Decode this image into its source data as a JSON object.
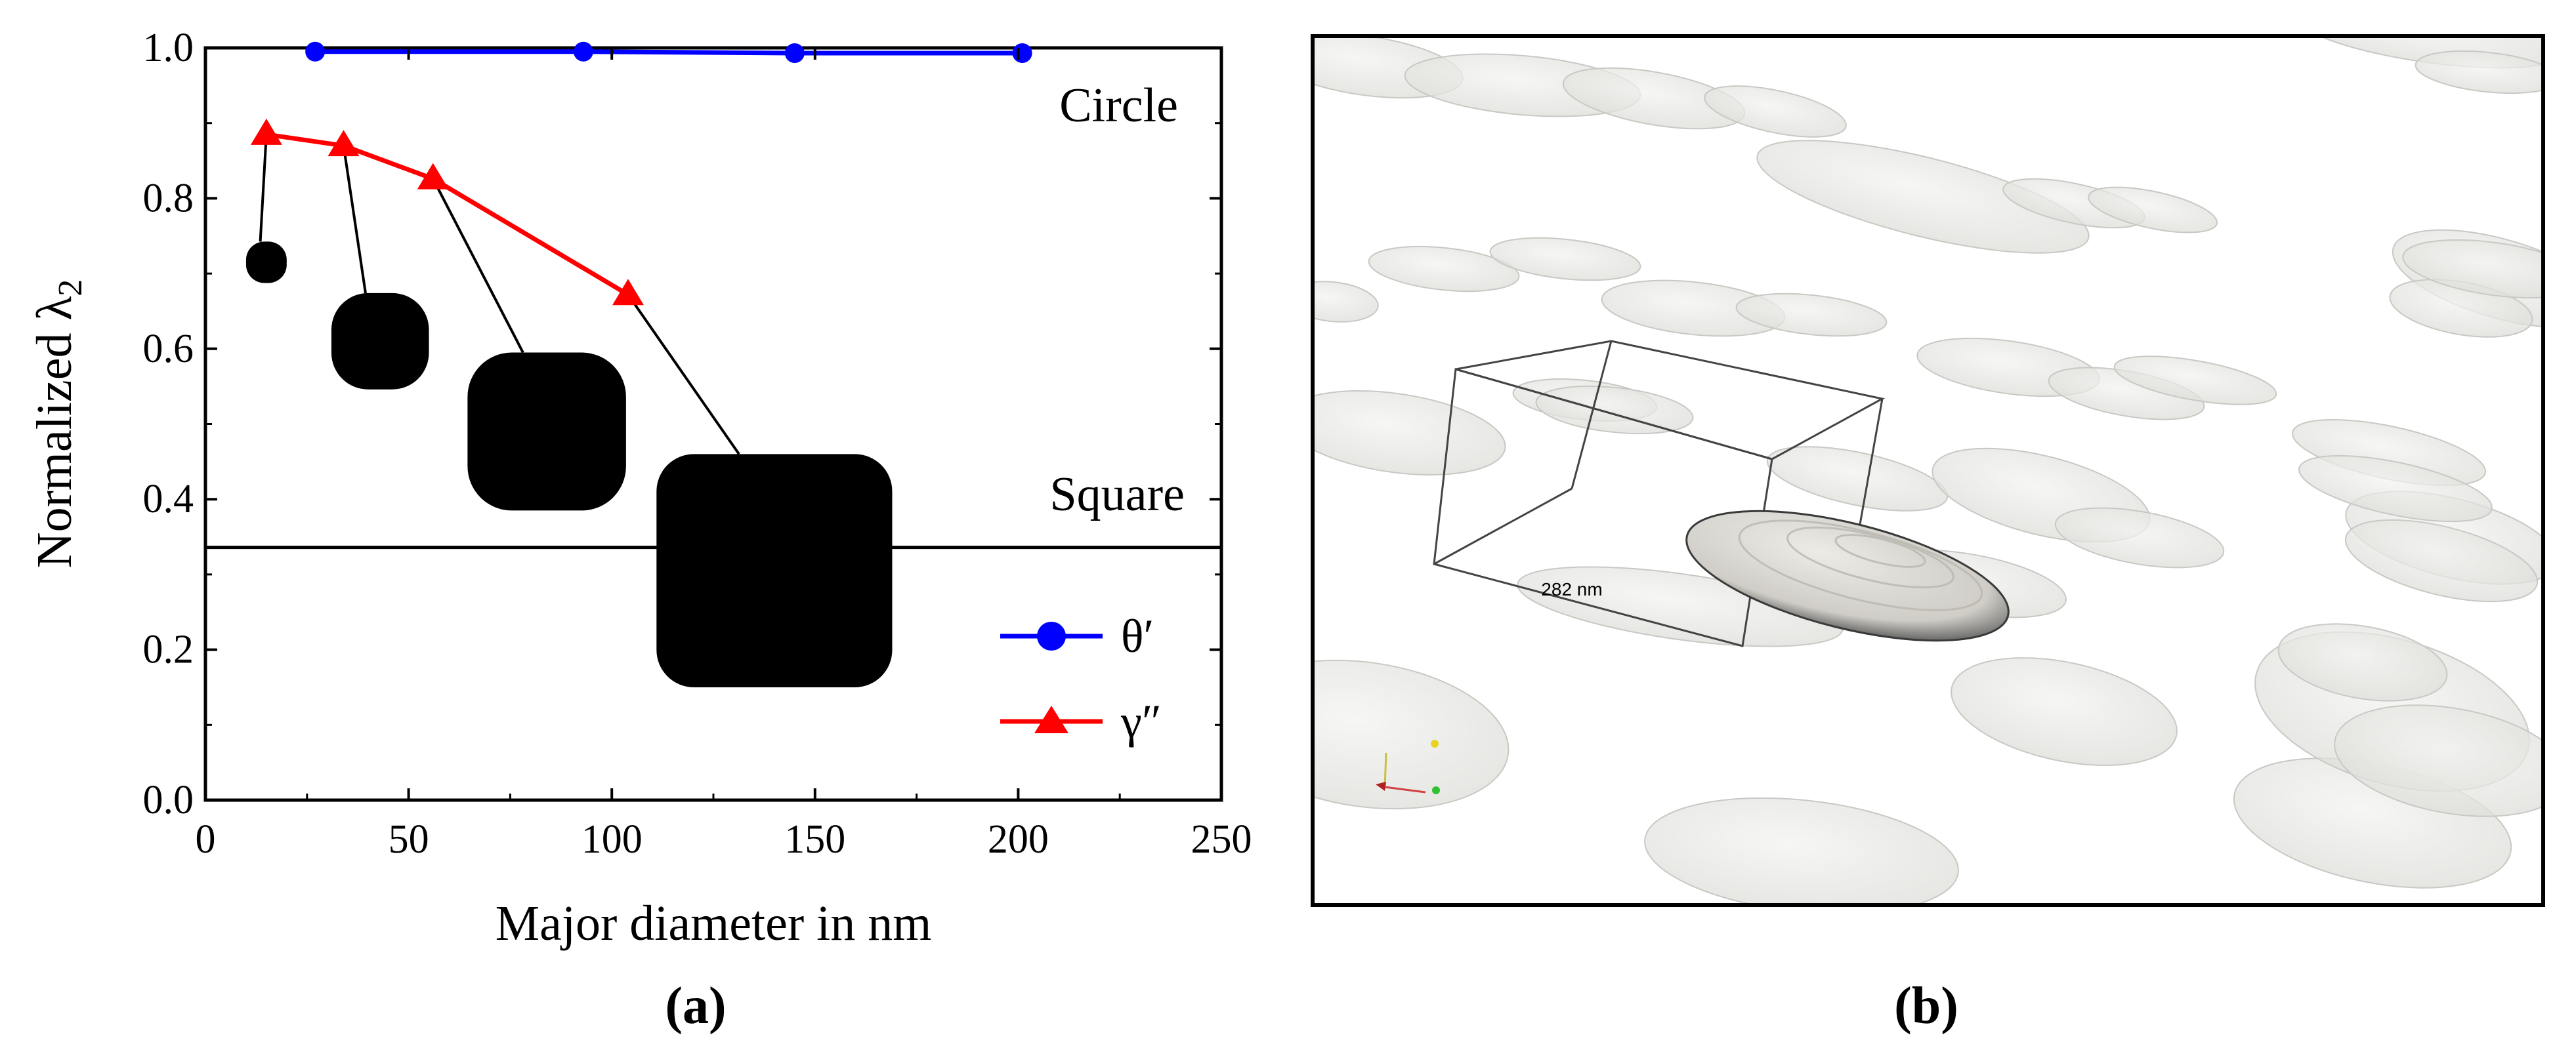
{
  "chart_data": [
    {
      "type": "line",
      "xlabel": "Major diameter in nm",
      "ylabel_main": "Normalized λ",
      "ylabel_sub": "2",
      "xlim": [
        0,
        250
      ],
      "ylim": [
        0,
        1.0
      ],
      "xticks": [
        0,
        50,
        100,
        150,
        200,
        250
      ],
      "yticks": [
        0.0,
        0.2,
        0.4,
        0.6,
        0.8,
        1.0
      ],
      "xtick_labels": [
        "0",
        "50",
        "100",
        "150",
        "200",
        "250"
      ],
      "ytick_labels": [
        "0.0",
        "0.2",
        "0.4",
        "0.6",
        "0.8",
        "1.0"
      ],
      "grid": false,
      "legend_position": "bottom-right",
      "series": [
        {
          "name": "θ′",
          "marker": "circle",
          "color": "#0000ff",
          "x": [
            27,
            93,
            145,
            201
          ],
          "y": [
            0.995,
            0.995,
            0.993,
            0.993
          ]
        },
        {
          "name": "γ″",
          "marker": "triangle",
          "color": "#ff0000",
          "x": [
            15,
            34,
            56,
            104
          ],
          "y": [
            0.885,
            0.87,
            0.826,
            0.672
          ]
        }
      ],
      "reference_lines": [
        {
          "label": "Circle",
          "y": 1.0
        },
        {
          "label": "Square",
          "y": 0.336
        }
      ],
      "shape_insets": [
        {
          "for_x": 15,
          "for_y": 0.885,
          "center": [
            15,
            0.715
          ],
          "size": [
            10,
            0.055
          ],
          "roundness": 0.45
        },
        {
          "for_x": 34,
          "for_y": 0.87,
          "center": [
            43,
            0.61
          ],
          "size": [
            24,
            0.128
          ],
          "roundness": 0.38
        },
        {
          "for_x": 56,
          "for_y": 0.826,
          "center": [
            84,
            0.49
          ],
          "size": [
            39,
            0.21
          ],
          "roundness": 0.28
        },
        {
          "for_x": 104,
          "for_y": 0.672,
          "center": [
            140,
            0.305
          ],
          "size": [
            58,
            0.31
          ],
          "roundness": 0.16
        }
      ],
      "caption": "(a)"
    },
    {
      "type": "other",
      "description_label": "3D render",
      "scale_bar_label": "282 nm",
      "caption": "(b)"
    }
  ]
}
